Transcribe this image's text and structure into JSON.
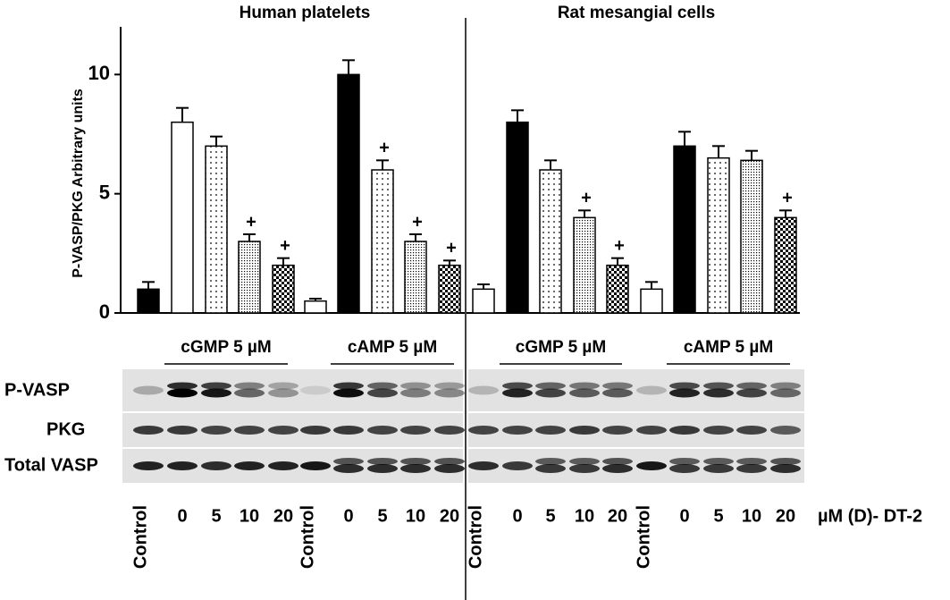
{
  "chart_data": [
    {
      "type": "bar",
      "title": "Human platelets",
      "y_label": "P-VASP/PKG Arbitrary units",
      "categories": [
        "Control",
        "0",
        "5",
        "10",
        "20",
        "Control",
        "0",
        "5",
        "10",
        "20"
      ],
      "values": [
        1,
        8,
        7,
        3,
        2,
        0.5,
        10,
        6,
        3,
        2
      ],
      "errors": [
        0.3,
        0.6,
        0.4,
        0.3,
        0.3,
        0.1,
        0.6,
        0.4,
        0.3,
        0.2
      ],
      "markers": [
        null,
        null,
        null,
        "+",
        "+",
        null,
        null,
        "+",
        "+",
        "+"
      ],
      "fills": [
        "black",
        "white",
        "dots",
        "dense",
        "checker",
        "white",
        "black",
        "dots",
        "dense",
        "checker"
      ],
      "groups": [
        "cGMP 5 µM",
        "cAMP 5 µM"
      ],
      "ylim": [
        0,
        12
      ],
      "yticks": [
        0,
        5,
        10
      ]
    },
    {
      "type": "bar",
      "title": "Rat mesangial cells",
      "categories": [
        "Control",
        "0",
        "5",
        "10",
        "20",
        "Control",
        "0",
        "5",
        "10",
        "20"
      ],
      "values": [
        1,
        8,
        6,
        4,
        2,
        1,
        7,
        6.5,
        6.4,
        4
      ],
      "errors": [
        0.2,
        0.5,
        0.4,
        0.3,
        0.3,
        0.3,
        0.6,
        0.5,
        0.4,
        0.3
      ],
      "markers": [
        null,
        null,
        null,
        "+",
        "+",
        null,
        null,
        null,
        null,
        "+"
      ],
      "fills": [
        "white",
        "black",
        "dots",
        "dense",
        "checker",
        "white",
        "black",
        "dots",
        "dense",
        "checker"
      ],
      "groups": [
        "cGMP 5 µM",
        "cAMP 5 µM"
      ],
      "ylim": [
        0,
        12
      ]
    }
  ],
  "blot_rows": [
    "P-VASP",
    "PKG",
    "Total VASP"
  ],
  "x_unit_label": "µM (D)- DT-2"
}
